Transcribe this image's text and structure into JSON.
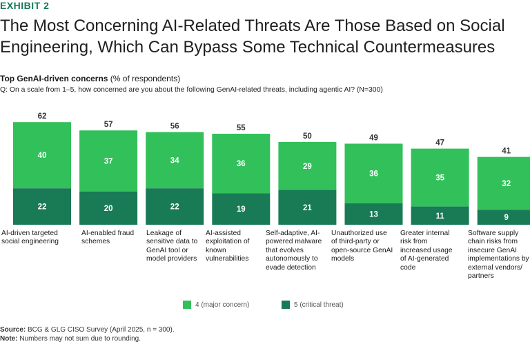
{
  "exhibit_label": "EXHIBIT 2",
  "title": "The Most Concerning AI-Related Threats Are Those Based on Social Engineering, Which Can Bypass Some Technical Countermeasures",
  "subtitle_bold": "Top GenAI-driven concerns",
  "subtitle_rest": " (% of respondents)",
  "question": "Q: On a scale from 1–5, how concerned are you about the following GenAI-related threats, including agentic AI? (N=300)",
  "colors": {
    "major": "#32c05a",
    "critical": "#197a56"
  },
  "legend": {
    "major_label": "4 (major concern)",
    "critical_label": "5 (critical threat)"
  },
  "source_label": "Source:",
  "source_text": " BCG & GLG CISO Survey (April 2025, n = 300).",
  "note_label": "Note:",
  "note_text": " Numbers may not sum due to rounding.",
  "categories": [
    "AI-driven targeted social engineering",
    "AI-enabled fraud schemes",
    "Leakage of sensitive data to GenAI tool or model providers",
    "AI-assisted exploitation of known vulnerabilities",
    "Self-adaptive, AI-powered malware that evolves autonomously to evade detection",
    "Unauthorized use of third-party or open-source GenAI models",
    "Greater internal risk from increased usage of AI-generated code",
    "Software supply chain risks from insecure GenAI implementations by external vendors/ partners"
  ],
  "chart_data": {
    "type": "bar",
    "stacked": true,
    "title": "Top GenAI-driven concerns (% of respondents)",
    "categories": [
      "AI-driven targeted social engineering",
      "AI-enabled fraud schemes",
      "Leakage of sensitive data to GenAI tool or model providers",
      "AI-assisted exploitation of known vulnerabilities",
      "Self-adaptive, AI-powered malware that evolves autonomously to evade detection",
      "Unauthorized use of third-party or open-source GenAI models",
      "Greater internal risk from increased usage of AI-generated code",
      "Software supply chain risks from insecure GenAI implementations by external vendors/ partners"
    ],
    "series": [
      {
        "name": "5 (critical threat)",
        "values": [
          22,
          20,
          22,
          19,
          21,
          13,
          11,
          9
        ]
      },
      {
        "name": "4 (major concern)",
        "values": [
          40,
          37,
          34,
          36,
          29,
          36,
          35,
          32
        ]
      }
    ],
    "totals": [
      62,
      57,
      56,
      55,
      50,
      49,
      47,
      41
    ],
    "ylim": [
      0,
      62
    ],
    "xlabel": "",
    "ylabel": ""
  }
}
